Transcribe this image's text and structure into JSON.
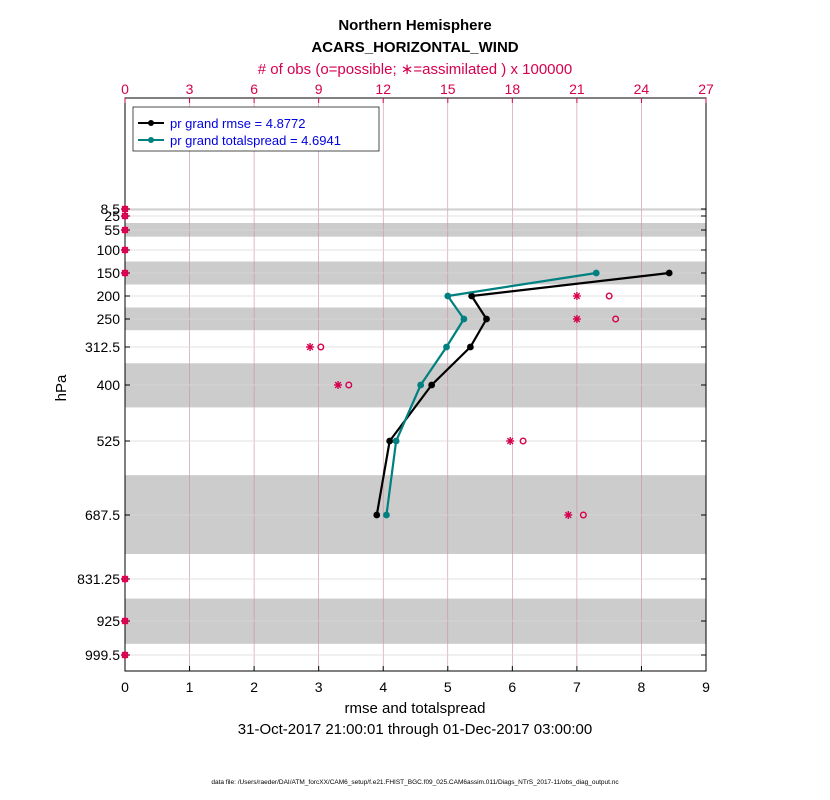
{
  "chart_data": {
    "type": "line",
    "title_line1": "Northern Hemisphere",
    "title_line2": "ACARS_HORIZONTAL_WIND",
    "top_axis_label": "# of obs (o=possible; ∗=assimilated ) x 100000",
    "xlabel": "rmse and totalspread",
    "ylabel": "hPa",
    "date_range": "31-Oct-2017 21:00:01 through 01-Dec-2017 03:00:00",
    "footnote": "data file: /Users/raeder/DAI/ATM_forcXX/CAM6_setup/f.e21.FHIST_BGC.f09_025.CAM6assim.011/Diags_NTrS_2017-11/obs_diag_output.nc",
    "xlim": [
      0,
      9
    ],
    "x_ticks": [
      "0",
      "1",
      "2",
      "3",
      "4",
      "5",
      "6",
      "7",
      "8",
      "9"
    ],
    "top_lim": [
      0,
      27
    ],
    "top_ticks": [
      "0",
      "3",
      "6",
      "9",
      "12",
      "15",
      "18",
      "21",
      "24",
      "27"
    ],
    "levels": [
      "8.5",
      "25",
      "55",
      "100",
      "150",
      "200",
      "250",
      "312.5",
      "400",
      "525",
      "687.5",
      "831.25",
      "925",
      "999.5"
    ],
    "level_values": [
      8.5,
      25,
      55,
      100,
      150,
      200,
      250,
      312.5,
      400,
      525,
      687.5,
      831.25,
      925,
      999.5
    ],
    "series": [
      {
        "name": "rmse",
        "legend": "pr grand rmse = 4.8772",
        "color": "#000000",
        "points": [
          [
            8.43,
            150
          ],
          [
            5.37,
            200
          ],
          [
            5.6,
            250
          ],
          [
            5.35,
            312.5
          ],
          [
            4.75,
            400
          ],
          [
            4.1,
            525
          ],
          [
            3.9,
            687.5
          ]
        ]
      },
      {
        "name": "totalspread",
        "legend": "pr grand totalspread = 4.6941",
        "color": "#008080",
        "points": [
          [
            7.3,
            150
          ],
          [
            5.0,
            200
          ],
          [
            5.25,
            250
          ],
          [
            4.98,
            312.5
          ],
          [
            4.58,
            400
          ],
          [
            4.2,
            525
          ],
          [
            4.05,
            687.5
          ]
        ]
      }
    ],
    "obs_possible": [
      {
        "level": 8.5,
        "value": 0
      },
      {
        "level": 25,
        "value": 0
      },
      {
        "level": 55,
        "value": 0
      },
      {
        "level": 100,
        "value": 0
      },
      {
        "level": 150,
        "value": 0
      },
      {
        "level": 200,
        "value": 22.5
      },
      {
        "level": 250,
        "value": 22.8
      },
      {
        "level": 312.5,
        "value": 9.1
      },
      {
        "level": 400,
        "value": 10.4
      },
      {
        "level": 525,
        "value": 18.5
      },
      {
        "level": 687.5,
        "value": 21.3
      },
      {
        "level": 831.25,
        "value": 0
      },
      {
        "level": 925,
        "value": 0
      },
      {
        "level": 999.5,
        "value": 0
      }
    ],
    "obs_assimilated": [
      {
        "level": 8.5,
        "value": 0
      },
      {
        "level": 25,
        "value": 0
      },
      {
        "level": 55,
        "value": 0
      },
      {
        "level": 100,
        "value": 0
      },
      {
        "level": 150,
        "value": 0
      },
      {
        "level": 200,
        "value": 21.0
      },
      {
        "level": 250,
        "value": 21.0
      },
      {
        "level": 312.5,
        "value": 8.6
      },
      {
        "level": 400,
        "value": 9.9
      },
      {
        "level": 525,
        "value": 17.9
      },
      {
        "level": 687.5,
        "value": 20.6
      },
      {
        "level": 831.25,
        "value": 0
      },
      {
        "level": 925,
        "value": 0
      },
      {
        "level": 999.5,
        "value": 0
      }
    ],
    "shaded_bands_hPa": [
      [
        7,
        12
      ],
      [
        40,
        70
      ],
      [
        125,
        175
      ],
      [
        225,
        275
      ],
      [
        350,
        450
      ],
      [
        600,
        775
      ],
      [
        875,
        975
      ]
    ],
    "colors": {
      "accent": "#d6004e",
      "band": "#cccccc",
      "grid_v": "#d08ca2",
      "grid_h": "#d9d9d9"
    }
  }
}
